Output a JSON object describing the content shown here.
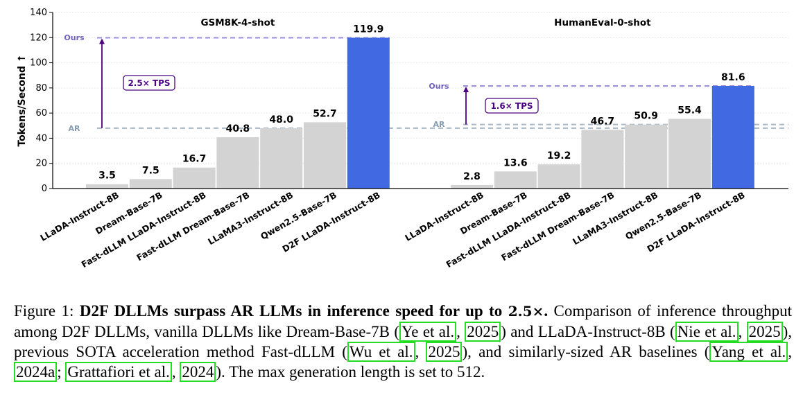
{
  "chart_data": [
    {
      "type": "bar",
      "title": "GSM8K-4-shot",
      "ylabel": "Tokens/Second ↑",
      "ylim": [
        0,
        140
      ],
      "yticks": [
        0,
        20,
        40,
        60,
        80,
        100,
        120,
        140
      ],
      "categories": [
        "LLaDA-Instruct-8B",
        "Dream-Base-7B",
        "Fast-dLLM LLaDA-Instruct-8B",
        "Fast-dLLM Dream-Base-7B",
        "LLaMA3-Instruct-8B",
        "Qwen2.5-Base-7B",
        "D2F LLaDA-Instruct-8B"
      ],
      "values": [
        3.5,
        7.5,
        16.7,
        40.8,
        48.0,
        52.7,
        119.9
      ],
      "value_labels": [
        "3.5",
        "7.5",
        "16.7",
        "40.8",
        "48.0",
        "52.7",
        "119.9"
      ],
      "highlight_index": 6,
      "ref_ours": {
        "label": "Ours",
        "value": 119.9
      },
      "ref_ar": {
        "label": "AR",
        "value": 48.0
      },
      "speedup_label": "2.5× TPS",
      "grid": true,
      "colors": {
        "bar": "#d3d3d3",
        "highlight": "#4169e1",
        "ours_line": "#9a90d6",
        "ar_line": "#a6b6c6",
        "arrow": "#4b0082"
      }
    },
    {
      "type": "bar",
      "title": "HumanEval-0-shot",
      "ylabel": "",
      "ylim": [
        0,
        140
      ],
      "yticks": [],
      "categories": [
        "LLaDA-Instruct-8B",
        "Dream-Base-7B",
        "Fast-dLLM LLaDA-Instruct-8B",
        "Fast-dLLM Dream-Base-7B",
        "LLaMA3-Instruct-8B",
        "Qwen2.5-Base-7B",
        "D2F LLaDA-Instruct-8B"
      ],
      "values": [
        2.8,
        13.6,
        19.2,
        46.7,
        50.9,
        55.4,
        81.6
      ],
      "value_labels": [
        "2.8",
        "13.6",
        "19.2",
        "46.7",
        "50.9",
        "55.4",
        "81.6"
      ],
      "highlight_index": 6,
      "ref_ours": {
        "label": "Ours",
        "value": 81.6
      },
      "ref_ar": {
        "label": "AR",
        "value": 50.9
      },
      "speedup_label": "1.6× TPS",
      "grid": true,
      "colors": {
        "bar": "#d3d3d3",
        "highlight": "#4169e1",
        "ours_line": "#9a90d6",
        "ar_line": "#a6b6c6",
        "arrow": "#4b0082"
      }
    }
  ],
  "caption": {
    "prefix": "Figure 1: ",
    "bold": "D2F DLLMs surpass AR LLMs in inference speed for up to ",
    "math": "2.5×",
    "dot": ".",
    "t1": " Comparison of inference throughput among D2F DLLMs, vanilla DLLMs like Dream-Base-7B (",
    "c1a": "Ye et al.",
    "sep1": ", ",
    "c1b": "2025",
    "t2": ") and LLaDA-Instruct-8B (",
    "c2a": "Nie et al.",
    "sep2": ", ",
    "c2b": "2025",
    "t3": "), previous SOTA acceleration method Fast-dLLM (",
    "c3a": "Wu et al.",
    "sep3": ", ",
    "c3b": "2025",
    "t4": "), and similarly-sized AR baselines (",
    "c4a": "Yang et al.",
    "sep4": ", ",
    "c4b": "2024a",
    "sep5": "; ",
    "c5a": "Grattafiori et al.",
    "sep6": ", ",
    "c5b": "2024",
    "t5": "). The max generation length is set to 512."
  }
}
